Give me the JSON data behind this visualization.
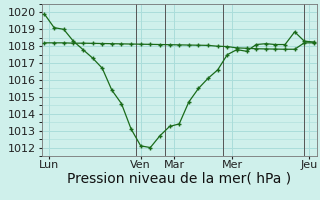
{
  "background_color": "#cff0eb",
  "grid_color": "#aaddda",
  "line_color": "#1a6b1a",
  "marker_color": "#1a6b1a",
  "line1_x": [
    0,
    1,
    2,
    3,
    4,
    5,
    6,
    7,
    8,
    9,
    10,
    11,
    12,
    13,
    14,
    15,
    16,
    17,
    18,
    19,
    20,
    21,
    22,
    23,
    24,
    25,
    26,
    27,
    28
  ],
  "line1_y": [
    1019.9,
    1019.1,
    1019.0,
    1018.3,
    1017.8,
    1017.3,
    1016.7,
    1015.4,
    1014.6,
    1013.1,
    1012.1,
    1012.0,
    1012.7,
    1013.25,
    1013.4,
    1014.7,
    1015.5,
    1016.1,
    1016.6,
    1017.5,
    1017.8,
    1017.7,
    1018.1,
    1018.15,
    1018.1,
    1018.1,
    1018.85,
    1018.3,
    1018.25
  ],
  "line2_x": [
    0,
    1,
    2,
    3,
    4,
    5,
    6,
    7,
    8,
    9,
    10,
    11,
    12,
    13,
    14,
    15,
    16,
    17,
    18,
    19,
    20,
    21,
    22,
    23,
    24,
    25,
    26,
    27,
    28
  ],
  "line2_y": [
    1018.2,
    1018.2,
    1018.2,
    1018.18,
    1018.18,
    1018.17,
    1018.16,
    1018.15,
    1018.14,
    1018.13,
    1018.12,
    1018.11,
    1018.1,
    1018.09,
    1018.08,
    1018.07,
    1018.06,
    1018.05,
    1018.0,
    1017.98,
    1017.9,
    1017.88,
    1017.85,
    1017.84,
    1017.83,
    1017.82,
    1017.82,
    1018.2,
    1018.2
  ],
  "yticks": [
    1012,
    1013,
    1014,
    1015,
    1016,
    1017,
    1018,
    1019,
    1020
  ],
  "ylim": [
    1011.5,
    1020.5
  ],
  "xlim": [
    -0.3,
    28.3
  ],
  "xtick_positions": [
    0.5,
    10.0,
    13.5,
    19.5,
    27.5
  ],
  "xtick_labels": [
    "Lun",
    "Ven",
    "Mar",
    "Mer",
    "Jeu"
  ],
  "vline_positions": [
    9.5,
    12.5,
    18.5,
    27.0
  ],
  "vline_color": "#555555",
  "xlabel": "Pression niveau de la mer( hPa )",
  "xlabel_fontsize": 10,
  "tick_fontsize": 8
}
